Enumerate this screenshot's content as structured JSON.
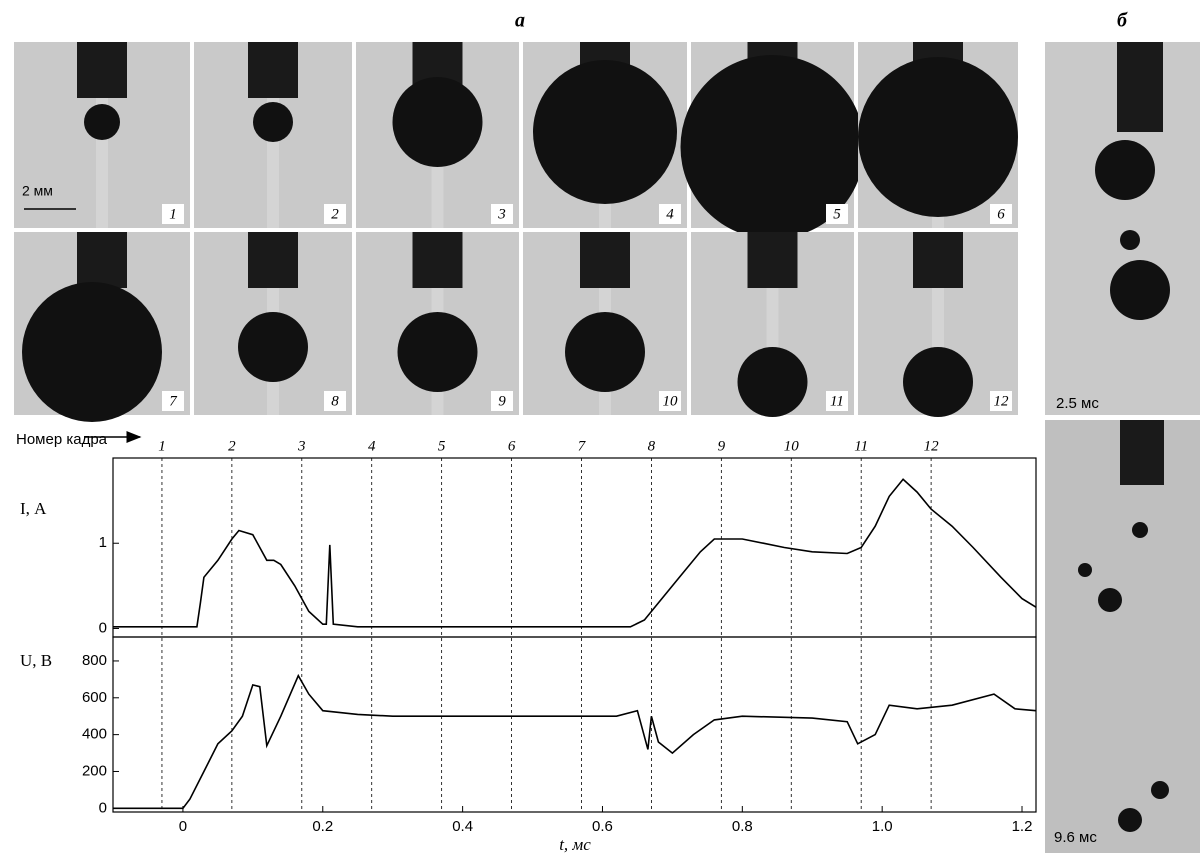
{
  "panels": {
    "a": "а",
    "b": "б"
  },
  "photos": {
    "scale": "2 мм",
    "frames": [
      "1",
      "2",
      "3",
      "4",
      "5",
      "6",
      "7",
      "8",
      "9",
      "10",
      "11",
      "12"
    ],
    "b_times": [
      "2.5 мс",
      "9.6 мс"
    ]
  },
  "frame_axis_label": "Номер кадра",
  "chart_data": [
    {
      "type": "line",
      "ylabel": "I, А",
      "color": "#000000",
      "frame_lines": [
        {
          "value": -0.03,
          "label": "1"
        },
        {
          "value": 0.07,
          "label": "2"
        },
        {
          "value": 0.17,
          "label": "3"
        },
        {
          "value": 0.27,
          "label": "4"
        },
        {
          "value": 0.37,
          "label": "5"
        },
        {
          "value": 0.47,
          "label": "6"
        },
        {
          "value": 0.57,
          "label": "7"
        },
        {
          "value": 0.67,
          "label": "8"
        },
        {
          "value": 0.77,
          "label": "9"
        },
        {
          "value": 0.87,
          "label": "10"
        },
        {
          "value": 0.97,
          "label": "11"
        },
        {
          "value": 1.07,
          "label": "12"
        }
      ],
      "x": [
        -0.1,
        0.02,
        0.025,
        0.03,
        0.05,
        0.07,
        0.08,
        0.1,
        0.11,
        0.12,
        0.13,
        0.14,
        0.16,
        0.18,
        0.2,
        0.205,
        0.21,
        0.215,
        0.25,
        0.64,
        0.66,
        0.68,
        0.71,
        0.74,
        0.76,
        0.8,
        0.83,
        0.86,
        0.9,
        0.95,
        0.97,
        0.99,
        1.01,
        1.03,
        1.05,
        1.07,
        1.1,
        1.13,
        1.17,
        1.2,
        1.22
      ],
      "values": [
        0.02,
        0.02,
        0.3,
        0.6,
        0.8,
        1.05,
        1.15,
        1.1,
        0.95,
        0.8,
        0.8,
        0.75,
        0.5,
        0.2,
        0.05,
        0.05,
        0.98,
        0.05,
        0.02,
        0.02,
        0.1,
        0.3,
        0.6,
        0.9,
        1.05,
        1.05,
        1.0,
        0.95,
        0.9,
        0.88,
        0.95,
        1.2,
        1.55,
        1.75,
        1.6,
        1.4,
        1.2,
        0.95,
        0.6,
        0.35,
        0.25
      ],
      "xlim": [
        -0.1,
        1.22
      ],
      "ylim": [
        -0.1,
        2.0
      ],
      "yticks": [
        0,
        1
      ]
    },
    {
      "type": "line",
      "ylabel": "U, В",
      "xlabel": "t, мс",
      "color": "#000000",
      "x": [
        -0.1,
        0,
        0.01,
        0.03,
        0.05,
        0.07,
        0.085,
        0.1,
        0.11,
        0.12,
        0.14,
        0.165,
        0.18,
        0.2,
        0.25,
        0.3,
        0.5,
        0.62,
        0.65,
        0.665,
        0.67,
        0.68,
        0.7,
        0.73,
        0.76,
        0.8,
        0.9,
        0.95,
        0.965,
        0.99,
        1.01,
        1.05,
        1.1,
        1.16,
        1.19,
        1.22
      ],
      "values": [
        0,
        0,
        50,
        200,
        350,
        420,
        500,
        670,
        660,
        340,
        500,
        720,
        620,
        530,
        510,
        500,
        500,
        500,
        530,
        320,
        500,
        360,
        300,
        400,
        480,
        500,
        490,
        470,
        350,
        400,
        560,
        540,
        560,
        620,
        540,
        530
      ],
      "xlim": [
        -0.1,
        1.22
      ],
      "ylim": [
        -20,
        930
      ],
      "yticks": [
        0,
        200,
        400,
        600,
        800
      ],
      "xticks": [
        0,
        0.2,
        0.4,
        0.6,
        0.8,
        {
          "value": 1,
          "label": "1.0"
        },
        1.2
      ]
    }
  ]
}
